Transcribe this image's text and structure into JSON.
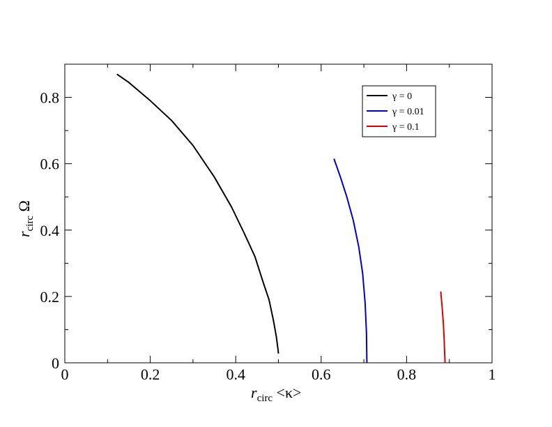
{
  "chart_data": {
    "type": "line",
    "xlabel": {
      "main": "r",
      "sub": "circ",
      "tail": " <κ>"
    },
    "ylabel": {
      "main": "r",
      "sub": "circ",
      "tail": " Ω"
    },
    "xlim": [
      0,
      1
    ],
    "ylim": [
      0,
      0.9
    ],
    "x_ticks": [
      0,
      0.2,
      0.4,
      0.6,
      0.8,
      1
    ],
    "x_tick_labels": [
      "0",
      "0.2",
      "0.4",
      "0.6",
      "0.8",
      "1"
    ],
    "x_minor_ticks": [
      0.1,
      0.3,
      0.5,
      0.7,
      0.9
    ],
    "y_ticks": [
      0,
      0.2,
      0.4,
      0.6,
      0.8
    ],
    "y_tick_labels": [
      "0",
      "0.2",
      "0.4",
      "0.6",
      "0.8"
    ],
    "y_minor_ticks": [
      0.1,
      0.3,
      0.5,
      0.7
    ],
    "grid": false,
    "legend_position": "top-right",
    "series": [
      {
        "name": "γ = 0",
        "color": "#000000",
        "points": [
          [
            0.122,
            0.87
          ],
          [
            0.15,
            0.845
          ],
          [
            0.2,
            0.79
          ],
          [
            0.25,
            0.73
          ],
          [
            0.3,
            0.655
          ],
          [
            0.35,
            0.56
          ],
          [
            0.39,
            0.47
          ],
          [
            0.42,
            0.39
          ],
          [
            0.445,
            0.32
          ],
          [
            0.465,
            0.24
          ],
          [
            0.478,
            0.19
          ],
          [
            0.488,
            0.13
          ],
          [
            0.495,
            0.08
          ],
          [
            0.499,
            0.04
          ],
          [
            0.5,
            0.028
          ]
        ]
      },
      {
        "name": "γ = 0.01",
        "color": "#0000cc",
        "points": [
          [
            0.63,
            0.615
          ],
          [
            0.645,
            0.56
          ],
          [
            0.66,
            0.5
          ],
          [
            0.675,
            0.43
          ],
          [
            0.688,
            0.35
          ],
          [
            0.697,
            0.27
          ],
          [
            0.703,
            0.18
          ],
          [
            0.706,
            0.09
          ],
          [
            0.707,
            0.0
          ]
        ]
      },
      {
        "name": "γ = 0.1",
        "color": "#dd0000",
        "points": [
          [
            0.88,
            0.215
          ],
          [
            0.883,
            0.17
          ],
          [
            0.886,
            0.12
          ],
          [
            0.888,
            0.07
          ],
          [
            0.889,
            0.03
          ],
          [
            0.89,
            0.0
          ]
        ]
      }
    ]
  }
}
